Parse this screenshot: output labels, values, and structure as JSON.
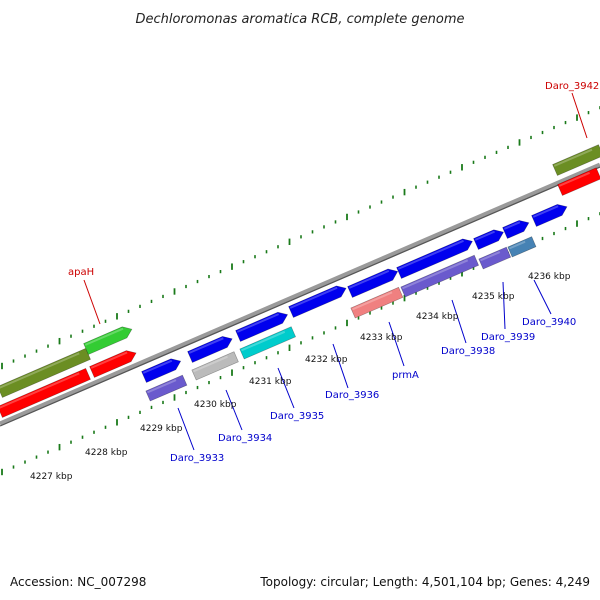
{
  "header": {
    "title": "Dechloromonas aromatica RCB, complete genome"
  },
  "footer": {
    "accession": "Accession: NC_007298",
    "summary": "Topology: circular; Length: 4,501,104 bp; Genes: 4,249"
  },
  "colors": {
    "backbone": "#808080",
    "tick": "#1a7a1a",
    "label_blue": "#0000cc",
    "label_red": "#cc0000",
    "gene_blue": "#0000ee",
    "gene_purple": "#6a5acd",
    "gene_red": "#ff0000",
    "gene_olive": "#6b8e23",
    "gene_green": "#33cc33",
    "gene_cyan": "#00cccc",
    "gene_gray": "#bbbbbb",
    "gene_pink": "#f08080",
    "gene_steel": "#4682b4"
  },
  "scale_labels": [
    "4227 kbp",
    "4228 kbp",
    "4229 kbp",
    "4230 kbp",
    "4231 kbp",
    "4232 kbp",
    "4233 kbp",
    "4234 kbp",
    "4235 kbp",
    "4236 kbp"
  ],
  "gene_labels": [
    {
      "name": "apaH",
      "color": "red"
    },
    {
      "name": "Daro_3942",
      "color": "red"
    },
    {
      "name": "Daro_3933",
      "color": "blue"
    },
    {
      "name": "Daro_3934",
      "color": "blue"
    },
    {
      "name": "Daro_3935",
      "color": "blue"
    },
    {
      "name": "Daro_3936",
      "color": "blue"
    },
    {
      "name": "prmA",
      "color": "blue"
    },
    {
      "name": "Daro_3938",
      "color": "blue"
    },
    {
      "name": "Daro_3939",
      "color": "blue"
    },
    {
      "name": "Daro_3940",
      "color": "blue"
    }
  ]
}
